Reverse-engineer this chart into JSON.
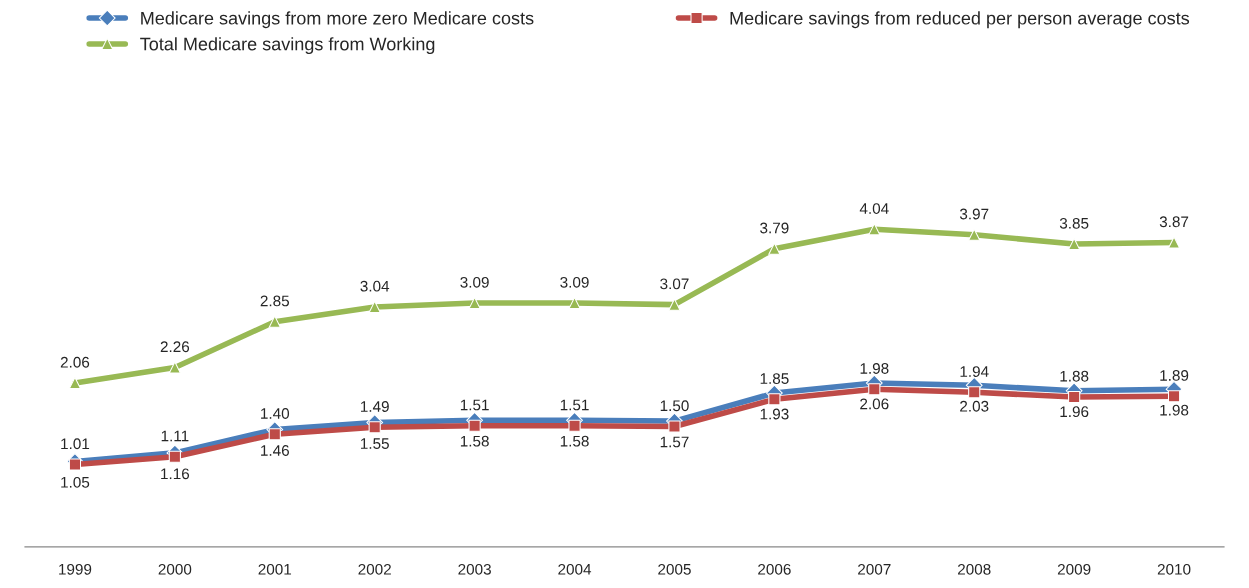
{
  "chart_data": {
    "type": "line",
    "categories": [
      "1999",
      "2000",
      "2001",
      "2002",
      "2003",
      "2004",
      "2005",
      "2006",
      "2007",
      "2008",
      "2009",
      "2010"
    ],
    "series": [
      {
        "name": "Medicare savings from more zero Medicare costs",
        "color": "#4a7ebb",
        "marker": "diamond",
        "values": [
          1.05,
          1.16,
          1.46,
          1.55,
          1.58,
          1.58,
          1.57,
          1.93,
          2.06,
          2.03,
          1.96,
          1.98
        ],
        "value_labels": [
          "1.05",
          "1.16",
          "1.46",
          "1.55",
          "1.58",
          "1.58",
          "1.57",
          "1.93",
          "2.06",
          "2.03",
          "1.96",
          "1.98"
        ]
      },
      {
        "name": "Medicare savings from reduced per person average costs",
        "color": "#be4b48",
        "marker": "square",
        "values": [
          1.01,
          1.11,
          1.4,
          1.49,
          1.51,
          1.51,
          1.5,
          1.85,
          1.98,
          1.94,
          1.88,
          1.89
        ],
        "value_labels": [
          "1.01",
          "1.11",
          "1.40",
          "1.49",
          "1.51",
          "1.51",
          "1.50",
          "1.85",
          "1.98",
          "1.94",
          "1.88",
          "1.89"
        ]
      },
      {
        "name": "Total Medicare savings from Working",
        "color": "#98b954",
        "marker": "triangle",
        "values": [
          2.06,
          2.26,
          2.85,
          3.04,
          3.09,
          3.09,
          3.07,
          3.79,
          4.04,
          3.97,
          3.85,
          3.87
        ],
        "value_labels": [
          "2.06",
          "2.26",
          "2.85",
          "3.04",
          "3.09",
          "3.09",
          "3.07",
          "3.79",
          "4.04",
          "3.97",
          "3.85",
          "3.87"
        ]
      }
    ],
    "legend": "top",
    "grid": false
  }
}
